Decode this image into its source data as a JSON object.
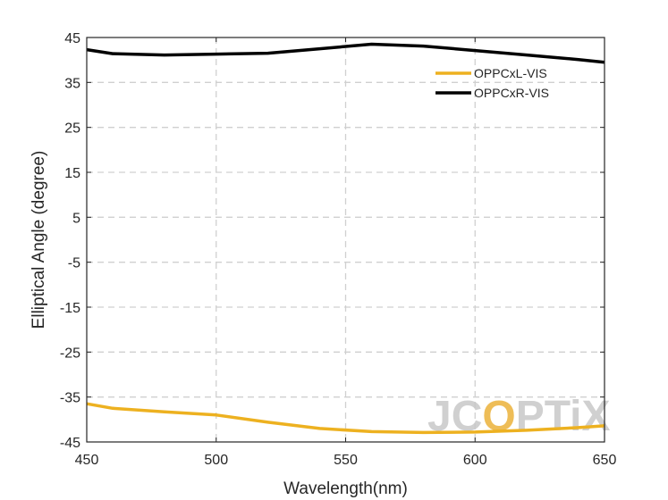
{
  "chart_data": {
    "type": "line",
    "title": "",
    "xlabel": "Wavelength(nm)",
    "ylabel": "Elliptical Angle (degree)",
    "xlim": [
      450,
      650
    ],
    "ylim": [
      -45,
      45
    ],
    "xticks": [
      450,
      500,
      550,
      600,
      650
    ],
    "yticks": [
      -45,
      -35,
      -25,
      -15,
      -5,
      5,
      15,
      25,
      35,
      45
    ],
    "grid": true,
    "legend_position": "top-right",
    "series": [
      {
        "name": "OPPCxL-VIS",
        "color": "#EDB120",
        "x": [
          450,
          460,
          480,
          500,
          520,
          540,
          560,
          580,
          600,
          620,
          640,
          650
        ],
        "y": [
          -36.5,
          -37.5,
          -38.3,
          -39.0,
          -40.6,
          -42.0,
          -42.7,
          -42.9,
          -42.8,
          -42.4,
          -41.8,
          -41.4
        ]
      },
      {
        "name": "OPPCxR-VIS",
        "color": "#000000",
        "x": [
          450,
          460,
          480,
          500,
          520,
          540,
          560,
          580,
          600,
          620,
          640,
          650
        ],
        "y": [
          42.3,
          41.4,
          41.1,
          41.3,
          41.5,
          42.5,
          43.5,
          43.1,
          42.1,
          41.1,
          40.1,
          39.5
        ]
      }
    ]
  },
  "watermark": {
    "text_part1": "JC",
    "text_o": "O",
    "text_part2": "PTiX",
    "color": "#c8c8c8",
    "accent": "#ecb23a"
  }
}
